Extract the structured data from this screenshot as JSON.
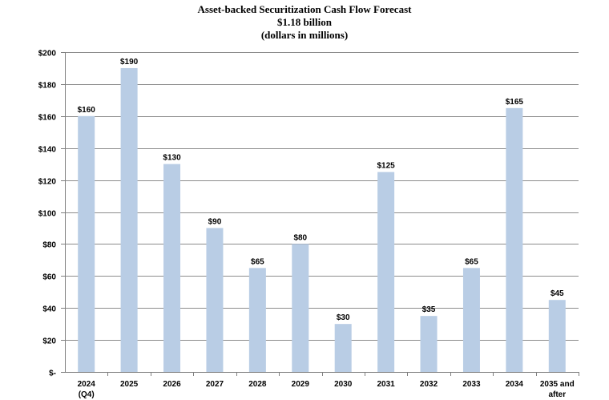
{
  "chart_data": {
    "type": "bar",
    "title_lines": [
      "Asset-backed Securitization Cash Flow Forecast",
      "$1.18 billion",
      "(dollars in millions)"
    ],
    "categories": [
      [
        "2024",
        "(Q4)"
      ],
      [
        "2025"
      ],
      [
        "2026"
      ],
      [
        "2027"
      ],
      [
        "2028"
      ],
      [
        "2029"
      ],
      [
        "2030"
      ],
      [
        "2031"
      ],
      [
        "2032"
      ],
      [
        "2033"
      ],
      [
        "2034"
      ],
      [
        "2035 and",
        "after"
      ]
    ],
    "values": [
      160,
      190,
      130,
      90,
      65,
      80,
      30,
      125,
      35,
      65,
      165,
      45
    ],
    "data_labels": [
      "$160",
      "$190",
      "$130",
      "$90",
      "$65",
      "$80",
      "$30",
      "$125",
      "$35",
      "$65",
      "$165",
      "$45"
    ],
    "ylim": [
      0,
      200
    ],
    "y_ticks": [
      0,
      20,
      40,
      60,
      80,
      100,
      120,
      140,
      160,
      180,
      200
    ],
    "y_tick_labels": [
      "$-",
      "$20",
      "$40",
      "$60",
      "$80",
      "$100",
      "$120",
      "$140",
      "$160",
      "$180",
      "$200"
    ],
    "grid": true,
    "colors": {
      "bar": "#b9cde5",
      "grid": "#8c8c8c",
      "axis": "#7f7f7f",
      "text": "#000000"
    }
  }
}
